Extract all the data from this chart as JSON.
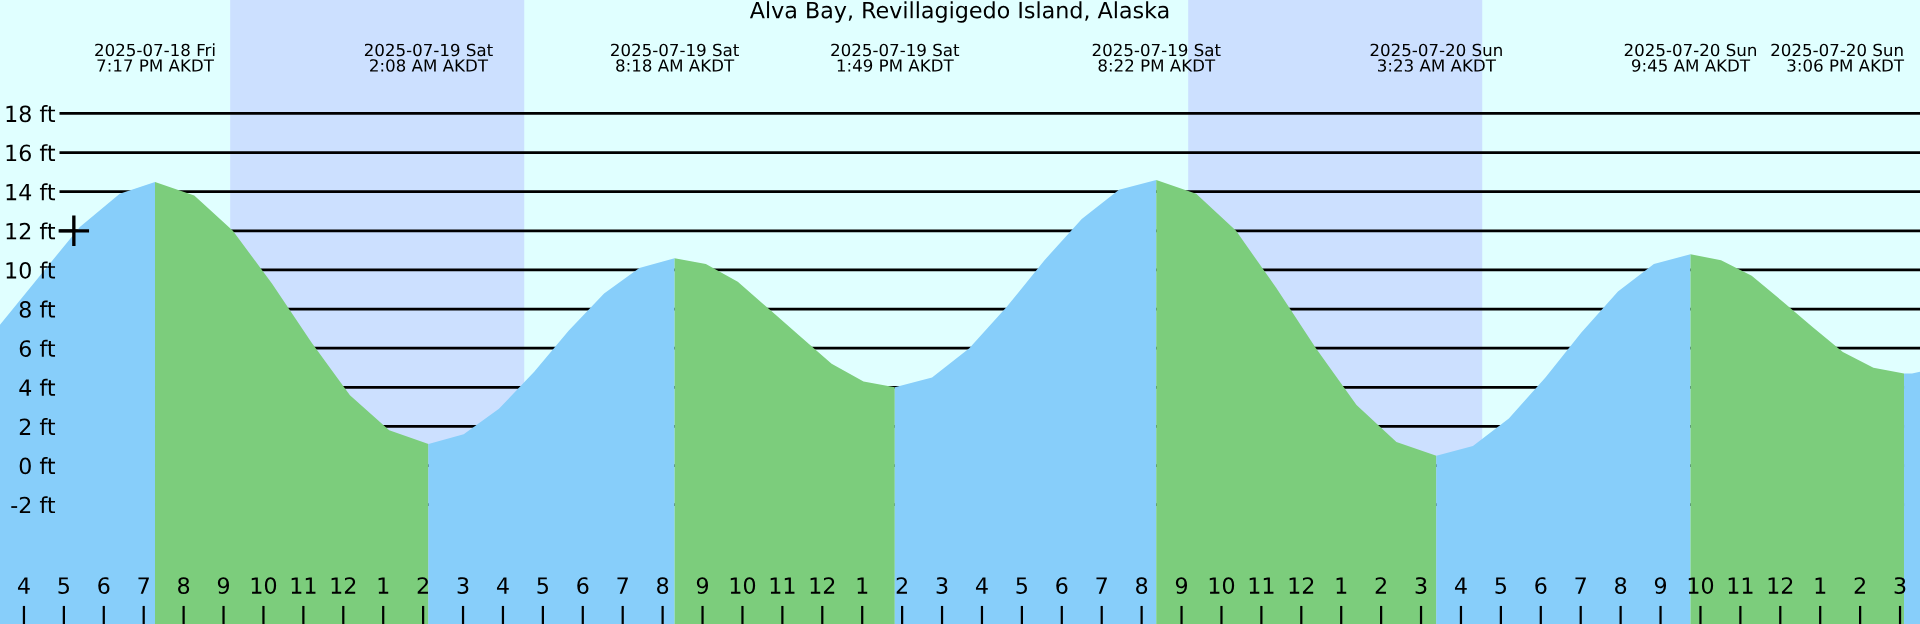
{
  "chart_data": {
    "type": "area",
    "title": "Alva Bay, Revillagigedo Island, Alaska",
    "series": [
      {
        "color": "#87cefa",
        "x": [
          "2025-07-18T15:24",
          "2025-07-18T16:24",
          "2025-07-18T17:24",
          "2025-07-18T18:24",
          "2025-07-18T19:17"
        ],
        "values": [
          7.2,
          9.7,
          12.2,
          13.9,
          14.5
        ]
      },
      {
        "color": "#7ccd7c",
        "x": [
          "2025-07-18T19:17",
          "2025-07-18T20:16",
          "2025-07-18T21:14",
          "2025-07-18T22:13",
          "2025-07-18T23:12",
          "2025-07-19T00:10",
          "2025-07-19T01:09",
          "2025-07-19T02:08"
        ],
        "values": [
          14.5,
          13.8,
          12.0,
          9.3,
          6.3,
          3.6,
          1.8,
          1.1
        ]
      },
      {
        "color": "#87cefa",
        "x": [
          "2025-07-19T02:08",
          "2025-07-19T03:01",
          "2025-07-19T03:54",
          "2025-07-19T04:47",
          "2025-07-19T05:39",
          "2025-07-19T06:32",
          "2025-07-19T07:25",
          "2025-07-19T08:18"
        ],
        "values": [
          1.1,
          1.6,
          2.9,
          4.8,
          6.9,
          8.8,
          10.1,
          10.6
        ]
      },
      {
        "color": "#7ccd7c",
        "x": [
          "2025-07-19T08:18",
          "2025-07-19T09:05",
          "2025-07-19T09:53",
          "2025-07-19T10:40",
          "2025-07-19T11:27",
          "2025-07-19T12:14",
          "2025-07-19T13:02",
          "2025-07-19T13:49"
        ],
        "values": [
          10.6,
          10.3,
          9.4,
          8.0,
          6.6,
          5.2,
          4.3,
          4.0
        ]
      },
      {
        "color": "#87cefa",
        "x": [
          "2025-07-19T13:49",
          "2025-07-19T14:45",
          "2025-07-19T15:41",
          "2025-07-19T16:37",
          "2025-07-19T17:34",
          "2025-07-19T18:30",
          "2025-07-19T19:26",
          "2025-07-19T20:22"
        ],
        "values": [
          4.0,
          4.5,
          6.0,
          8.1,
          10.5,
          12.6,
          14.1,
          14.6
        ]
      },
      {
        "color": "#7ccd7c",
        "x": [
          "2025-07-19T20:22",
          "2025-07-19T21:22",
          "2025-07-19T22:22",
          "2025-07-19T23:22",
          "2025-07-20T00:22",
          "2025-07-20T01:23",
          "2025-07-20T02:23",
          "2025-07-20T03:23"
        ],
        "values": [
          14.6,
          13.9,
          12.0,
          9.1,
          6.0,
          3.1,
          1.2,
          0.5
        ]
      },
      {
        "color": "#87cefa",
        "x": [
          "2025-07-20T03:23",
          "2025-07-20T04:18",
          "2025-07-20T05:12",
          "2025-07-20T06:07",
          "2025-07-20T07:01",
          "2025-07-20T07:56",
          "2025-07-20T08:50",
          "2025-07-20T09:45"
        ],
        "values": [
          0.5,
          1.0,
          2.4,
          4.5,
          6.8,
          8.9,
          10.3,
          10.8
        ]
      },
      {
        "color": "#7ccd7c",
        "x": [
          "2025-07-20T09:45",
          "2025-07-20T10:31",
          "2025-07-20T11:17",
          "2025-07-20T12:03",
          "2025-07-20T12:48",
          "2025-07-20T13:34",
          "2025-07-20T14:20",
          "2025-07-20T15:06"
        ],
        "values": [
          10.8,
          10.5,
          9.7,
          8.4,
          7.1,
          5.8,
          5.0,
          4.7
        ]
      },
      {
        "color": "#87cefa",
        "x": [
          "2025-07-20T15:06",
          "2025-07-20T15:18",
          "2025-07-20T15:30"
        ],
        "values": [
          4.7,
          4.7,
          4.8
        ]
      },
      {
        "type": "scatter",
        "color": "#000000",
        "marker": "cross",
        "x": [
          "2025-07-18T17:15"
        ],
        "values": [
          12
        ]
      }
    ],
    "bands": [
      {
        "axis": "x",
        "from": "2025-07-18T21:10",
        "to": "2025-07-19T04:32",
        "color": "#cce0ff"
      },
      {
        "axis": "x",
        "from": "2025-07-19T21:10",
        "to": "2025-07-20T04:32",
        "color": "#cce0ff"
      }
    ],
    "xlim": [
      "2025-07-18T15:24",
      "2025-07-20T15:30"
    ],
    "ylim": [
      -8.1,
      23.8
    ],
    "x2lim": [
      "2025-07-18T15:24",
      "2025-07-20T15:30"
    ],
    "x2ticks": [
      {
        "value": "2025-07-18T19:17",
        "label": "2025-07-18 Fri\n7:17 PM AKDT"
      },
      {
        "value": "2025-07-19T02:08",
        "label": "2025-07-19 Sat\n2:08 AM AKDT"
      },
      {
        "value": "2025-07-19T08:18",
        "label": "2025-07-19 Sat\n8:18 AM AKDT"
      },
      {
        "value": "2025-07-19T13:49",
        "label": "2025-07-19 Sat\n1:49 PM AKDT"
      },
      {
        "value": "2025-07-19T20:22",
        "label": "2025-07-19 Sat\n8:22 PM AKDT"
      },
      {
        "value": "2025-07-20T03:23",
        "label": "2025-07-20 Sun\n3:23 AM AKDT"
      },
      {
        "value": "2025-07-20T09:45",
        "label": "2025-07-20 Sun\n9:45 AM AKDT"
      },
      {
        "value": "2025-07-20T15:06",
        "label": "2025-07-20 Sun\n3:06 PM AKDT"
      }
    ],
    "xticks": [
      {
        "value": "2025-07-18T16:00",
        "label": "4"
      },
      {
        "value": "2025-07-18T17:00",
        "label": "5"
      },
      {
        "value": "2025-07-18T18:00",
        "label": "6"
      },
      {
        "value": "2025-07-18T19:00",
        "label": "7"
      },
      {
        "value": "2025-07-18T20:00",
        "label": "8"
      },
      {
        "value": "2025-07-18T21:00",
        "label": "9"
      },
      {
        "value": "2025-07-18T22:00",
        "label": "10"
      },
      {
        "value": "2025-07-18T23:00",
        "label": "11"
      },
      {
        "value": "2025-07-19T00:00",
        "label": "12"
      },
      {
        "value": "2025-07-19T01:00",
        "label": "1"
      },
      {
        "value": "2025-07-19T02:00",
        "label": "2"
      },
      {
        "value": "2025-07-19T03:00",
        "label": "3"
      },
      {
        "value": "2025-07-19T04:00",
        "label": "4"
      },
      {
        "value": "2025-07-19T05:00",
        "label": "5"
      },
      {
        "value": "2025-07-19T06:00",
        "label": "6"
      },
      {
        "value": "2025-07-19T07:00",
        "label": "7"
      },
      {
        "value": "2025-07-19T08:00",
        "label": "8"
      },
      {
        "value": "2025-07-19T09:00",
        "label": "9"
      },
      {
        "value": "2025-07-19T10:00",
        "label": "10"
      },
      {
        "value": "2025-07-19T11:00",
        "label": "11"
      },
      {
        "value": "2025-07-19T12:00",
        "label": "12"
      },
      {
        "value": "2025-07-19T13:00",
        "label": "1"
      },
      {
        "value": "2025-07-19T14:00",
        "label": "2"
      },
      {
        "value": "2025-07-19T15:00",
        "label": "3"
      },
      {
        "value": "2025-07-19T16:00",
        "label": "4"
      },
      {
        "value": "2025-07-19T17:00",
        "label": "5"
      },
      {
        "value": "2025-07-19T18:00",
        "label": "6"
      },
      {
        "value": "2025-07-19T19:00",
        "label": "7"
      },
      {
        "value": "2025-07-19T20:00",
        "label": "8"
      },
      {
        "value": "2025-07-19T21:00",
        "label": "9"
      },
      {
        "value": "2025-07-19T22:00",
        "label": "10"
      },
      {
        "value": "2025-07-19T23:00",
        "label": "11"
      },
      {
        "value": "2025-07-20T00:00",
        "label": "12"
      },
      {
        "value": "2025-07-20T01:00",
        "label": "1"
      },
      {
        "value": "2025-07-20T02:00",
        "label": "2"
      },
      {
        "value": "2025-07-20T03:00",
        "label": "3"
      },
      {
        "value": "2025-07-20T04:00",
        "label": "4"
      },
      {
        "value": "2025-07-20T05:00",
        "label": "5"
      },
      {
        "value": "2025-07-20T06:00",
        "label": "6"
      },
      {
        "value": "2025-07-20T07:00",
        "label": "7"
      },
      {
        "value": "2025-07-20T08:00",
        "label": "8"
      },
      {
        "value": "2025-07-20T09:00",
        "label": "9"
      },
      {
        "value": "2025-07-20T10:00",
        "label": "10"
      },
      {
        "value": "2025-07-20T11:00",
        "label": "11"
      },
      {
        "value": "2025-07-20T12:00",
        "label": "12"
      },
      {
        "value": "2025-07-20T13:00",
        "label": "1"
      },
      {
        "value": "2025-07-20T14:00",
        "label": "2"
      },
      {
        "value": "2025-07-20T15:00",
        "label": "3"
      }
    ],
    "yticks": [
      {
        "value": -2,
        "label": "-2 ft"
      },
      {
        "value": 0,
        "label": "0 ft"
      },
      {
        "value": 2,
        "label": "2 ft"
      },
      {
        "value": 4,
        "label": "4 ft"
      },
      {
        "value": 6,
        "label": "6 ft"
      },
      {
        "value": 8,
        "label": "8 ft"
      },
      {
        "value": 10,
        "label": "10 ft"
      },
      {
        "value": 12,
        "label": "12 ft"
      },
      {
        "value": 14,
        "label": "14 ft"
      },
      {
        "value": 16,
        "label": "16 ft"
      },
      {
        "value": 18,
        "label": "18 ft"
      }
    ],
    "grid": "y",
    "legend": false
  }
}
